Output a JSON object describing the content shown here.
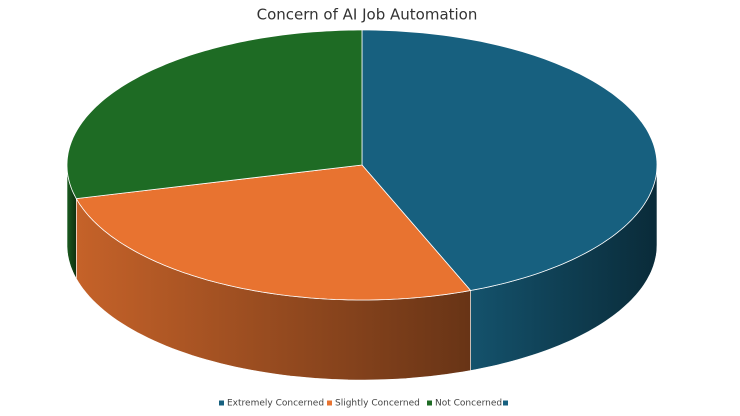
{
  "chart_data": {
    "type": "pie3d",
    "title": "Concern of AI Job Automation",
    "categories": [
      "Extremely Concerned",
      "Slightly Concerned",
      "Not Concerned",
      null
    ],
    "values": [
      44,
      27,
      29,
      0
    ],
    "colors": [
      "#17607f",
      "#e87330",
      "#1e6b24",
      "#17607f"
    ],
    "legend": "bottom"
  }
}
